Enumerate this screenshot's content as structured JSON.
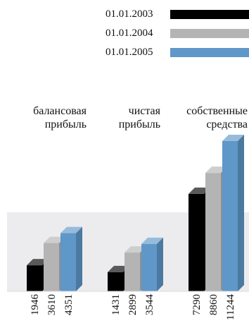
{
  "chart_data": {
    "type": "bar",
    "categories": [
      "балансовая\nприбыль",
      "чистая\nприбыль",
      "собственные\nсредства"
    ],
    "series": [
      {
        "name": "01.01.2003",
        "values": [
          1946,
          1431,
          7290
        ],
        "color": "#000000"
      },
      {
        "name": "01.01.2004",
        "values": [
          3610,
          2899,
          8860
        ],
        "color": "#b4b4b4"
      },
      {
        "name": "01.01.2005",
        "values": [
          4351,
          3544,
          11244
        ],
        "color": "#5f97c8"
      }
    ],
    "data_labels": [
      [
        "1946",
        "3610",
        "4351"
      ],
      [
        "1431",
        "2899",
        "3544"
      ],
      [
        "7290",
        "8860",
        "11244"
      ]
    ],
    "ylim": [
      0,
      11244
    ],
    "grid": false,
    "legend_position": "top-right",
    "style": "3d-bars"
  }
}
